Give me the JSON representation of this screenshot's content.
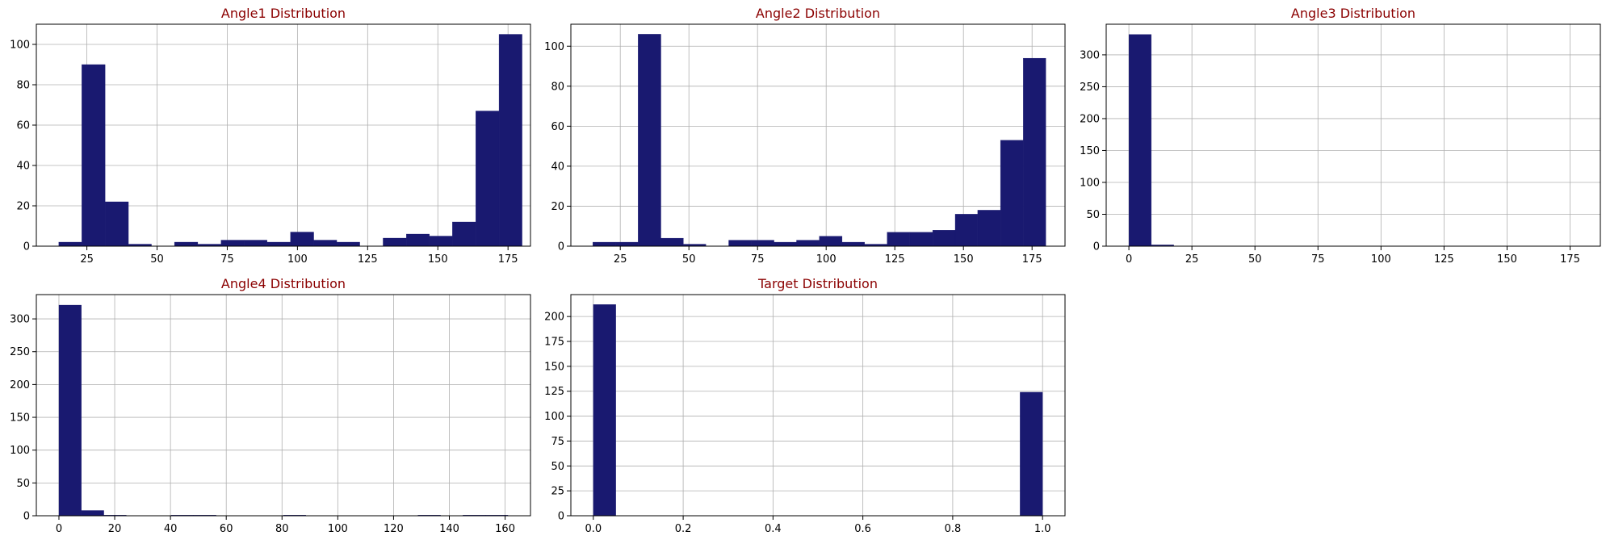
{
  "style": {
    "bar_color": "#191970",
    "title_color": "#8b0000",
    "grid_color": "#b0b0b0"
  },
  "chart_data": [
    {
      "type": "bar",
      "title": "Angle1 Distribution",
      "xlabel": "",
      "ylabel": "",
      "xlim": [
        7,
        183
      ],
      "ylim": [
        0,
        110
      ],
      "grid": true,
      "xticks": [
        25,
        50,
        75,
        100,
        125,
        150,
        175
      ],
      "yticks": [
        0,
        20,
        40,
        60,
        80,
        100
      ],
      "bin_edges": [
        15.0,
        23.2,
        31.5,
        39.8,
        48.0,
        56.2,
        64.5,
        72.8,
        81.0,
        89.2,
        97.5,
        105.8,
        114.0,
        122.2,
        130.5,
        138.8,
        147.0,
        155.2,
        163.5,
        171.8,
        180.0
      ],
      "values": [
        2,
        90,
        22,
        1,
        0,
        2,
        1,
        3,
        3,
        2,
        7,
        3,
        2,
        0,
        4,
        6,
        5,
        12,
        67,
        105
      ]
    },
    {
      "type": "bar",
      "title": "Angle2 Distribution",
      "xlabel": "",
      "ylabel": "",
      "xlim": [
        7,
        187
      ],
      "ylim": [
        0,
        111
      ],
      "grid": true,
      "xticks": [
        25,
        50,
        75,
        100,
        125,
        150,
        175
      ],
      "yticks": [
        0,
        20,
        40,
        60,
        80,
        100
      ],
      "bin_edges": [
        15.0,
        23.2,
        31.5,
        39.8,
        48.0,
        56.2,
        64.5,
        72.8,
        81.0,
        89.2,
        97.5,
        105.8,
        114.0,
        122.2,
        130.5,
        138.8,
        147.0,
        155.2,
        163.5,
        171.8,
        180.0
      ],
      "values": [
        2,
        2,
        106,
        4,
        1,
        0,
        3,
        3,
        2,
        3,
        5,
        2,
        1,
        7,
        7,
        8,
        16,
        18,
        53,
        94
      ]
    },
    {
      "type": "bar",
      "title": "Angle3 Distribution",
      "xlabel": "",
      "ylabel": "",
      "xlim": [
        -9,
        187
      ],
      "ylim": [
        0,
        348
      ],
      "grid": true,
      "xticks": [
        0,
        25,
        50,
        75,
        100,
        125,
        150,
        175
      ],
      "yticks": [
        0,
        50,
        100,
        150,
        200,
        250,
        300
      ],
      "bin_edges": [
        0.0,
        8.9,
        17.8,
        26.7,
        35.6,
        44.5,
        53.4,
        62.3,
        71.2,
        80.1,
        89.0,
        97.9,
        106.8,
        115.7,
        124.6,
        133.5,
        142.4,
        151.3,
        160.2,
        169.1,
        178.0
      ],
      "values": [
        332,
        2,
        0,
        0,
        0,
        0,
        0,
        0,
        0,
        0,
        0,
        0,
        0,
        0,
        0,
        0,
        0,
        0,
        0,
        0
      ]
    },
    {
      "type": "bar",
      "title": "Angle4 Distribution",
      "xlabel": "",
      "ylabel": "",
      "xlim": [
        -8.1,
        169.1
      ],
      "ylim": [
        0,
        337
      ],
      "grid": true,
      "xticks": [
        0,
        20,
        40,
        60,
        80,
        100,
        120,
        140,
        160
      ],
      "yticks": [
        0,
        50,
        100,
        150,
        200,
        250,
        300
      ],
      "bin_edges": [
        0.0,
        8.05,
        16.1,
        24.15,
        32.2,
        40.25,
        48.3,
        56.35,
        64.4,
        72.45,
        80.5,
        88.55,
        96.6,
        104.65,
        112.7,
        120.75,
        128.8,
        136.85,
        144.9,
        152.95,
        161.0
      ],
      "values": [
        321,
        8,
        1,
        0,
        0,
        1,
        1,
        0,
        0,
        0,
        1,
        0,
        0,
        0,
        0,
        0,
        1,
        0,
        1,
        1
      ]
    },
    {
      "type": "bar",
      "title": "Target Distribution",
      "xlabel": "",
      "ylabel": "",
      "xlim": [
        -0.05,
        1.05
      ],
      "ylim": [
        0,
        222
      ],
      "grid": true,
      "xticks": [
        0.0,
        0.2,
        0.4,
        0.6,
        0.8,
        1.0
      ],
      "xtick_labels": [
        "0.0",
        "0.2",
        "0.4",
        "0.6",
        "0.8",
        "1.0"
      ],
      "yticks": [
        0,
        25,
        50,
        75,
        100,
        125,
        150,
        175,
        200
      ],
      "bin_edges": [
        0.0,
        0.05,
        0.1,
        0.15,
        0.2,
        0.25,
        0.3,
        0.35,
        0.4,
        0.45,
        0.5,
        0.55,
        0.6,
        0.65,
        0.7,
        0.75,
        0.8,
        0.85,
        0.9,
        0.95,
        1.0
      ],
      "values": [
        212,
        0,
        0,
        0,
        0,
        0,
        0,
        0,
        0,
        0,
        0,
        0,
        0,
        0,
        0,
        0,
        0,
        0,
        0,
        124
      ]
    }
  ]
}
